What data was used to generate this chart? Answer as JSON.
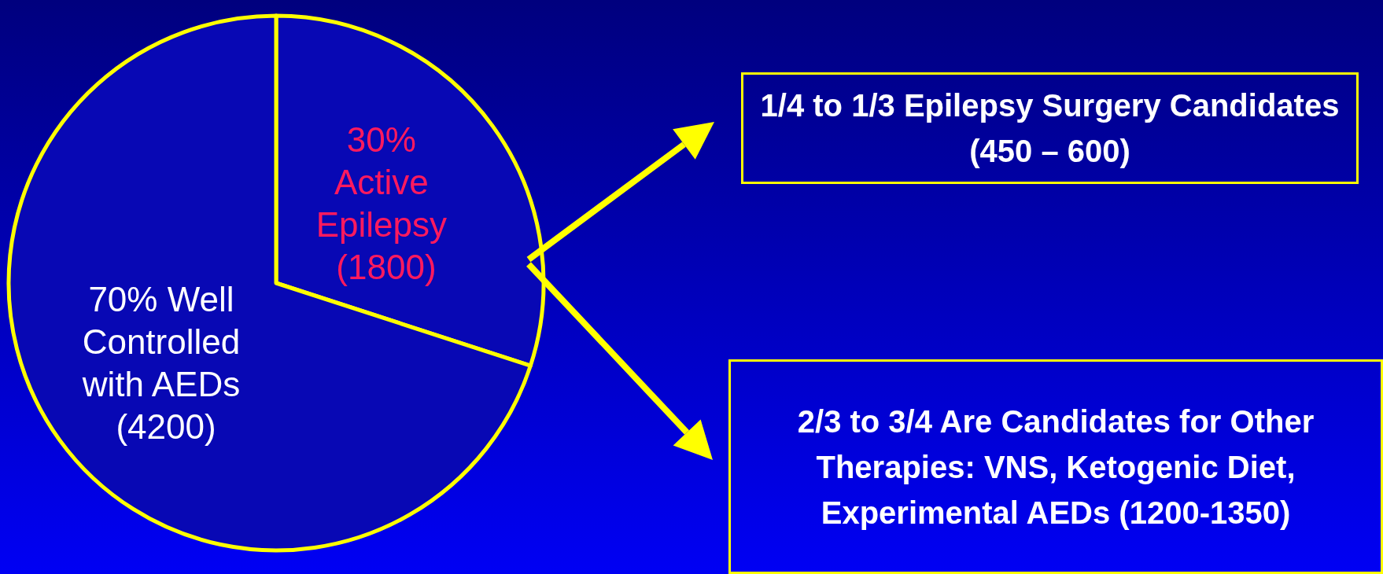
{
  "chart_data": {
    "type": "pie",
    "categories": [
      "30% Active Epilepsy (1800)",
      "70% Well Controlled with AEDs (4200)"
    ],
    "values": [
      30,
      70
    ],
    "colors": [
      "#0808b4",
      "#0808b4"
    ],
    "legend": false,
    "annotations": [
      "1/4 to 1/3 Epilepsy Surgery Candidates (450 – 600)",
      "2/3 to 3/4 Are Candidates for Other Therapies: VNS, Ketogenic Diet, Experimental AEDs (1200-1350)"
    ]
  }
}
